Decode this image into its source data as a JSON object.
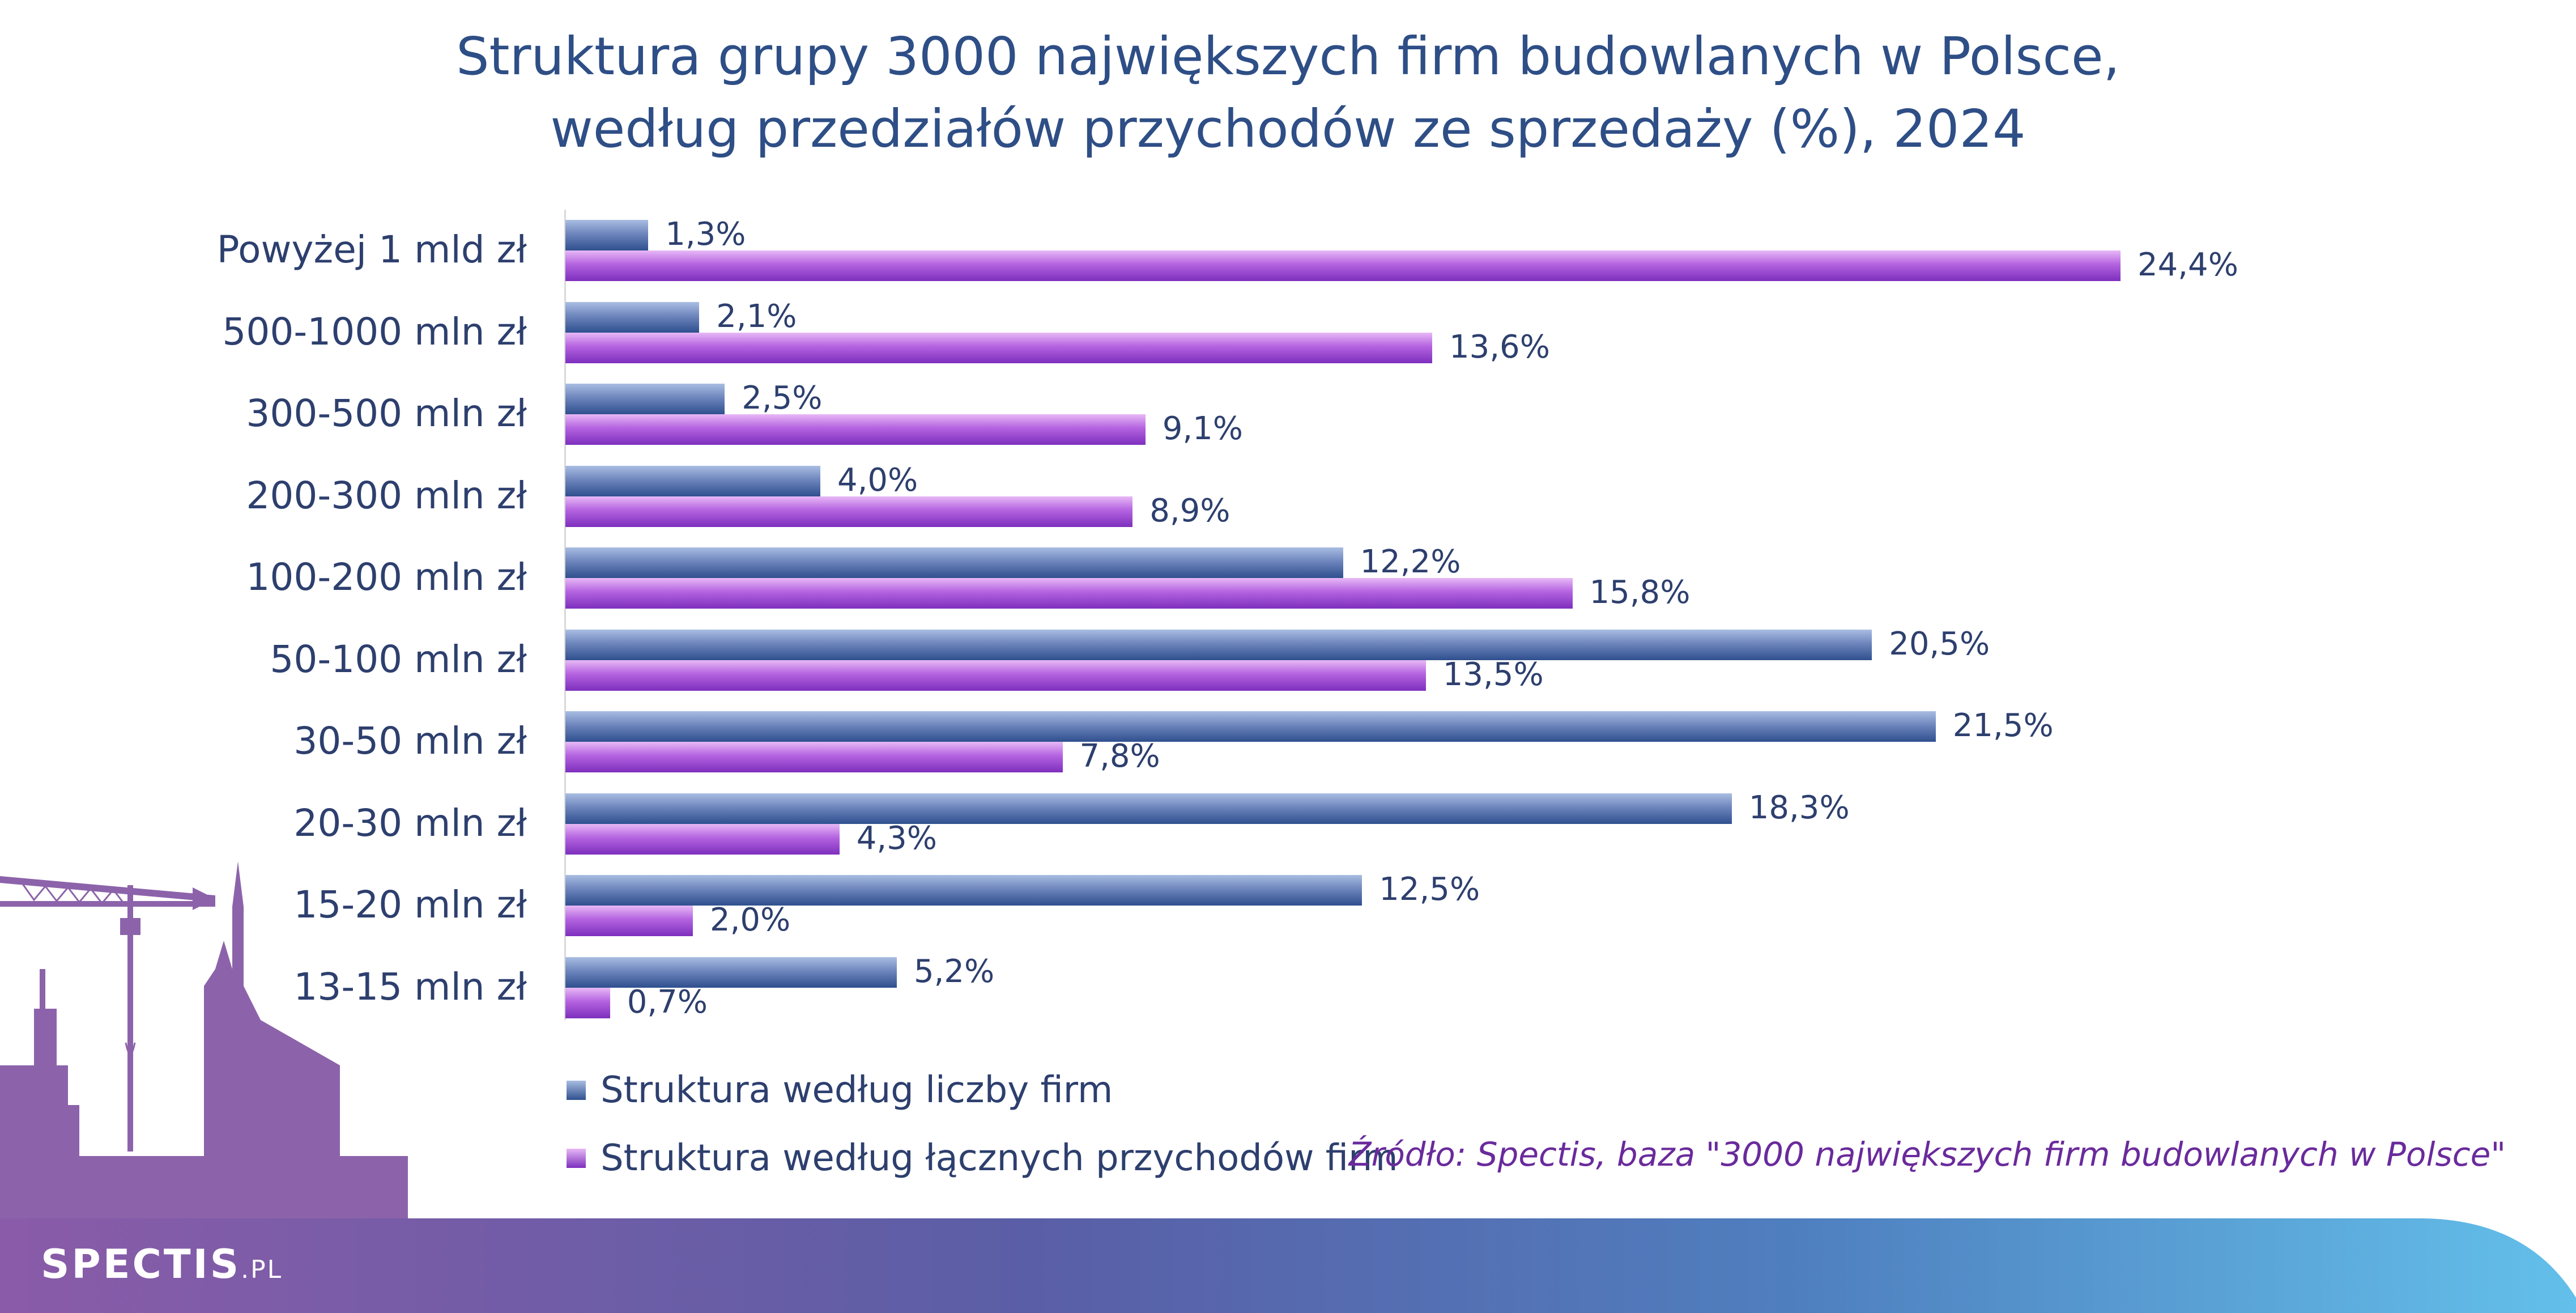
{
  "chart_data": {
    "type": "bar",
    "orientation": "horizontal",
    "title": "Struktura grupy 3000 największych firm budowlanych w Polsce,",
    "subtitle": "według przedziałów przychodów ze sprzedaży (%), 2024",
    "categories": [
      "Powyżej 1 mld zł",
      "500-1000 mln zł",
      "300-500 mln zł",
      "200-300 mln zł",
      "100-200 mln zł",
      "50-100 mln zł",
      "30-50 mln zł",
      "20-30 mln zł",
      "15-20 mln zł",
      "13-15 mln zł"
    ],
    "series": [
      {
        "name": "Struktura według liczby firm",
        "values": [
          1.3,
          2.1,
          2.5,
          4.0,
          12.2,
          20.5,
          21.5,
          18.3,
          12.5,
          5.2
        ],
        "labels": [
          "1,3%",
          "2,1%",
          "2,5%",
          "4,0%",
          "12,2%",
          "20,5%",
          "21,5%",
          "18,3%",
          "12,5%",
          "5,2%"
        ],
        "color": "#4a6aa8"
      },
      {
        "name": "Struktura według łącznych przychodów firm",
        "values": [
          24.4,
          13.6,
          9.1,
          8.9,
          15.8,
          13.5,
          7.8,
          4.3,
          2.0,
          0.7
        ],
        "labels": [
          "24,4%",
          "13,6%",
          "9,1%",
          "8,9%",
          "15,8%",
          "13,5%",
          "7,8%",
          "4,3%",
          "2,0%",
          "0,7%"
        ],
        "color": "#9c45d0"
      }
    ],
    "xlim": [
      0,
      26
    ],
    "grid": false,
    "legend": "bottom-left"
  },
  "source": "Źródło: Spectis, baza \"3000 największych firm budowlanych w Polsce\"",
  "brand": {
    "main": "SPECTIS",
    "suffix": ".PL"
  },
  "colors": {
    "title": "#2e4e86",
    "label": "#2d3f6e",
    "source": "#6a2a9c",
    "skyline": "#8c63aa"
  }
}
